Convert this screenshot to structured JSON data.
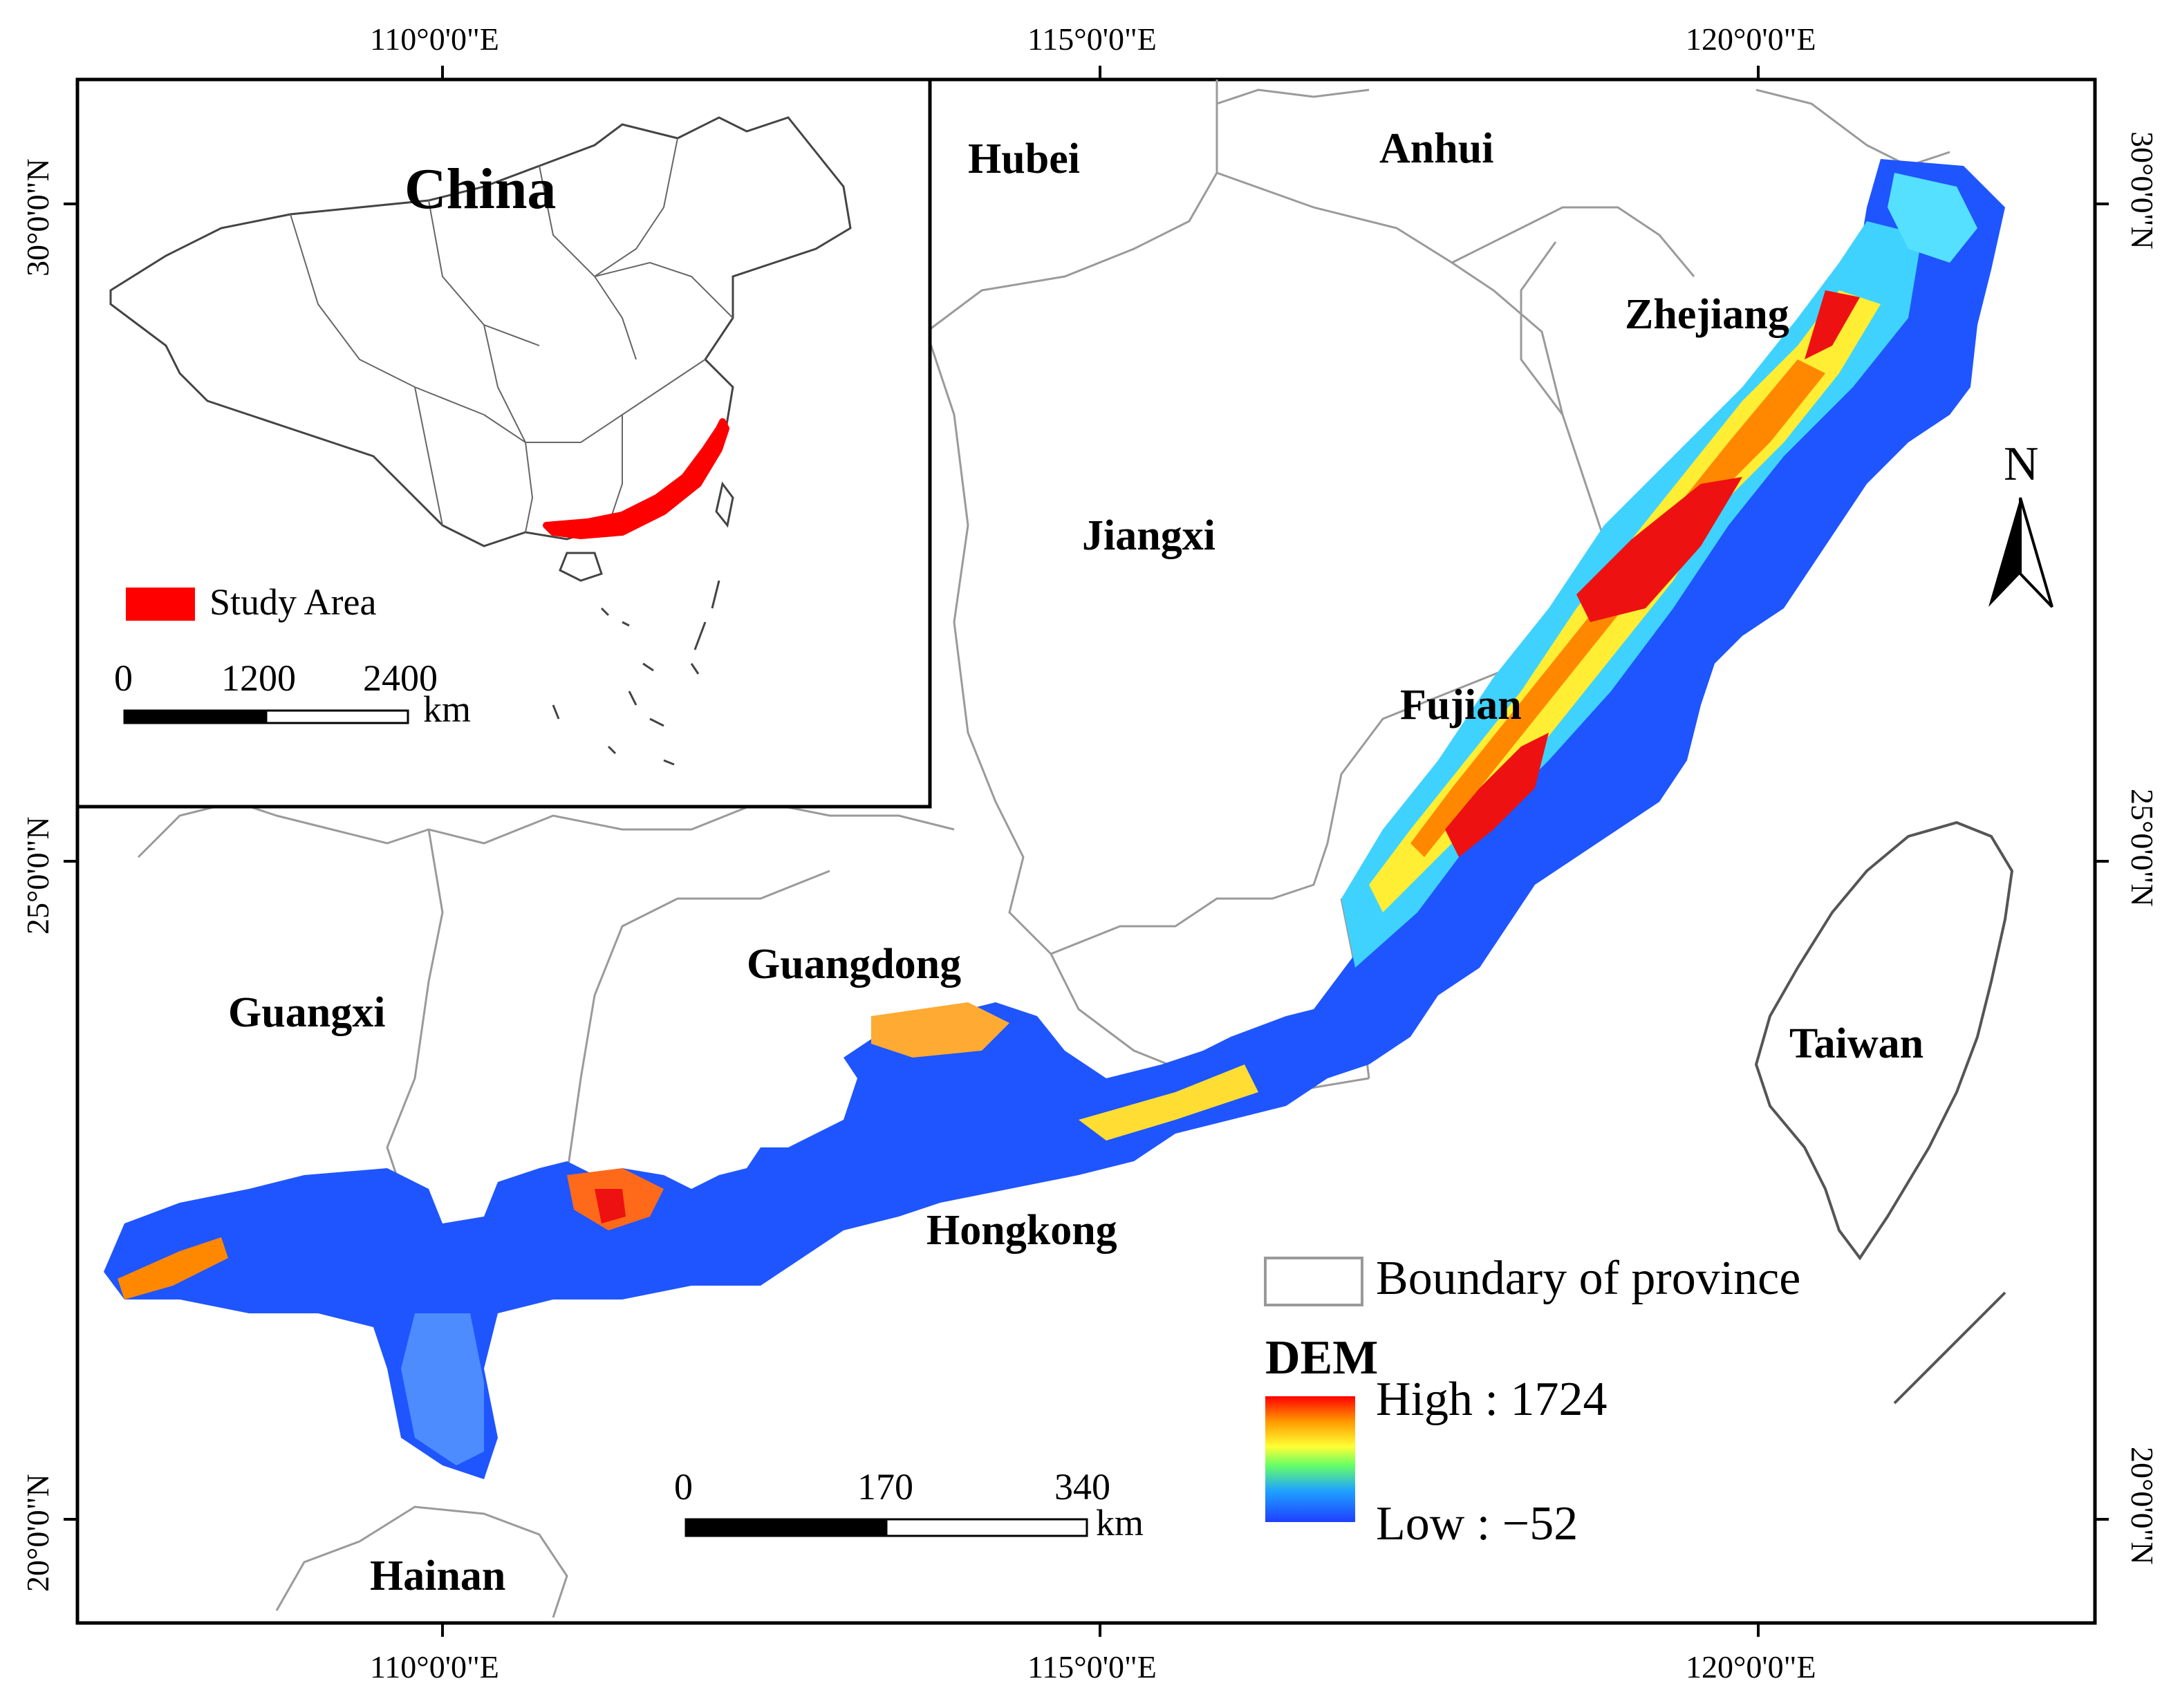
{
  "map": {
    "lon_ticks": [
      "110°0'0\"E",
      "115°0'0\"E",
      "120°0'0\"E"
    ],
    "lat_ticks": [
      "30°0'0\"N",
      "25°0'0\"N",
      "20°0'0\"N"
    ],
    "provinces": [
      "Hubei",
      "Anhui",
      "Zhejiang",
      "Jiangxi",
      "Fujian",
      "Guangdong",
      "Guangxi",
      "Taiwan",
      "Hongkong",
      "Hainan"
    ],
    "north_arrow": "N",
    "scale_bar": {
      "ticks": [
        "0",
        "170",
        "340"
      ],
      "unit": "km"
    },
    "legend": {
      "boundary_label": "Boundary of province",
      "dem_title": "DEM",
      "high_label": "High : 1724",
      "low_label": "Low : −52",
      "colors": [
        "#d7191c",
        "#fdae61",
        "#ffff66",
        "#66ff99",
        "#2b83ba",
        "#1f3fff"
      ]
    }
  },
  "inset": {
    "title": "China",
    "legend_label": "Study Area",
    "study_color": "#ff0000",
    "scale_bar": {
      "ticks": [
        "0",
        "1200",
        "2400"
      ],
      "unit": "km"
    }
  }
}
